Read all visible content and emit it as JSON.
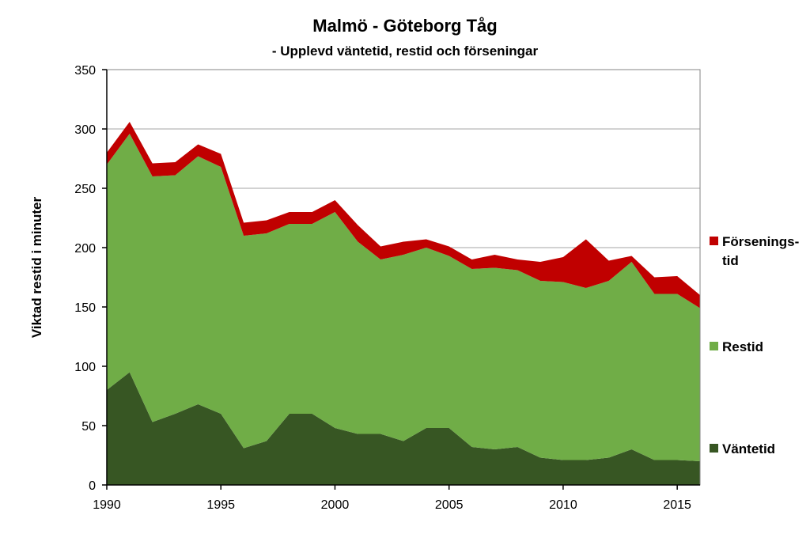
{
  "chart_data": {
    "type": "area",
    "stacked": true,
    "title": "Malmö - Göteborg  Tåg",
    "subtitle": "- Upplevd väntetid, restid och förseningar",
    "ylabel": "Viktad restid i minuter",
    "xlabel": "",
    "xlim": [
      1990,
      2016
    ],
    "ylim": [
      0,
      350
    ],
    "yticks": [
      "0",
      "50",
      "100",
      "150",
      "200",
      "250",
      "300",
      "350"
    ],
    "xticks": [
      "1990",
      "1995",
      "2000",
      "2005",
      "2010",
      "2015"
    ],
    "grid": true,
    "legend_position": "right",
    "x": [
      1990,
      1991,
      1992,
      1993,
      1994,
      1995,
      1996,
      1997,
      1998,
      1999,
      2000,
      2001,
      2002,
      2003,
      2004,
      2005,
      2006,
      2007,
      2008,
      2009,
      2010,
      2011,
      2012,
      2013,
      2014,
      2015,
      2016
    ],
    "series": [
      {
        "name": "Väntetid",
        "color": "#375623",
        "values": [
          80,
          95,
          53,
          60,
          68,
          60,
          31,
          37,
          60,
          60,
          48,
          43,
          43,
          37,
          48,
          48,
          32,
          30,
          32,
          23,
          21,
          21,
          23,
          30,
          21,
          21,
          20
        ]
      },
      {
        "name": "Restid",
        "color": "#70ad47",
        "values": [
          190,
          201,
          207,
          201,
          209,
          208,
          179,
          175,
          160,
          160,
          182,
          162,
          147,
          157,
          152,
          145,
          150,
          153,
          149,
          149,
          150,
          145,
          149,
          158,
          140,
          140,
          129
        ]
      },
      {
        "name": "Förseningstid",
        "legend_lines": [
          "Försenings-",
          "tid"
        ],
        "color": "#c00000",
        "values": [
          10,
          10,
          11,
          11,
          10,
          11,
          11,
          11,
          10,
          10,
          10,
          14,
          11,
          11,
          7,
          8,
          8,
          11,
          9,
          16,
          21,
          41,
          17,
          5,
          14,
          15,
          11
        ]
      }
    ]
  }
}
